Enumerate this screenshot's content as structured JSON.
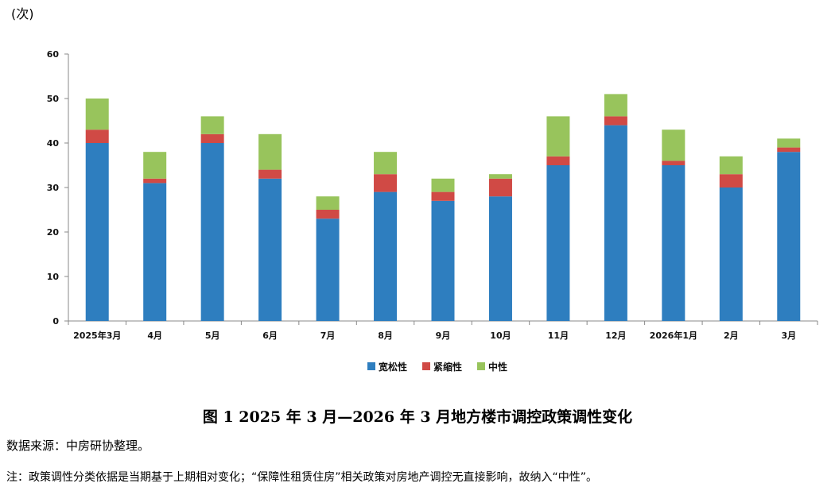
{
  "unit_label": "(次)",
  "caption": "图 1 2025 年 3 月—2026 年 3 月地方楼市调控政策调性变化",
  "source": "数据来源：中房研协整理。",
  "note": "注：政策调性分类依据是当期基于上期相对变化；“保障性租赁住房”相关政策对房地产调控无直接影响，故纳入“中性”。",
  "chart_data": {
    "type": "bar",
    "stacked": true,
    "categories": [
      "2025年3月",
      "4月",
      "5月",
      "6月",
      "7月",
      "8月",
      "9月",
      "10月",
      "11月",
      "12月",
      "2026年1月",
      "2月",
      "3月"
    ],
    "series": [
      {
        "name": "宽松性",
        "color": "#2e7ebf",
        "values": [
          40,
          31,
          40,
          32,
          23,
          29,
          27,
          28,
          35,
          44,
          35,
          30,
          38
        ]
      },
      {
        "name": "紧缩性",
        "color": "#d04a45",
        "values": [
          3,
          1,
          2,
          2,
          2,
          4,
          2,
          4,
          2,
          2,
          1,
          3,
          1
        ]
      },
      {
        "name": "中性",
        "color": "#98c45c",
        "values": [
          7,
          6,
          4,
          8,
          3,
          5,
          3,
          1,
          9,
          5,
          7,
          4,
          2
        ]
      }
    ],
    "ylim": [
      0,
      60
    ],
    "yticks": [
      0,
      10,
      20,
      30,
      40,
      50,
      60
    ],
    "ylabel": "(次)",
    "xlabel": "",
    "legend_position": "bottom-center"
  }
}
